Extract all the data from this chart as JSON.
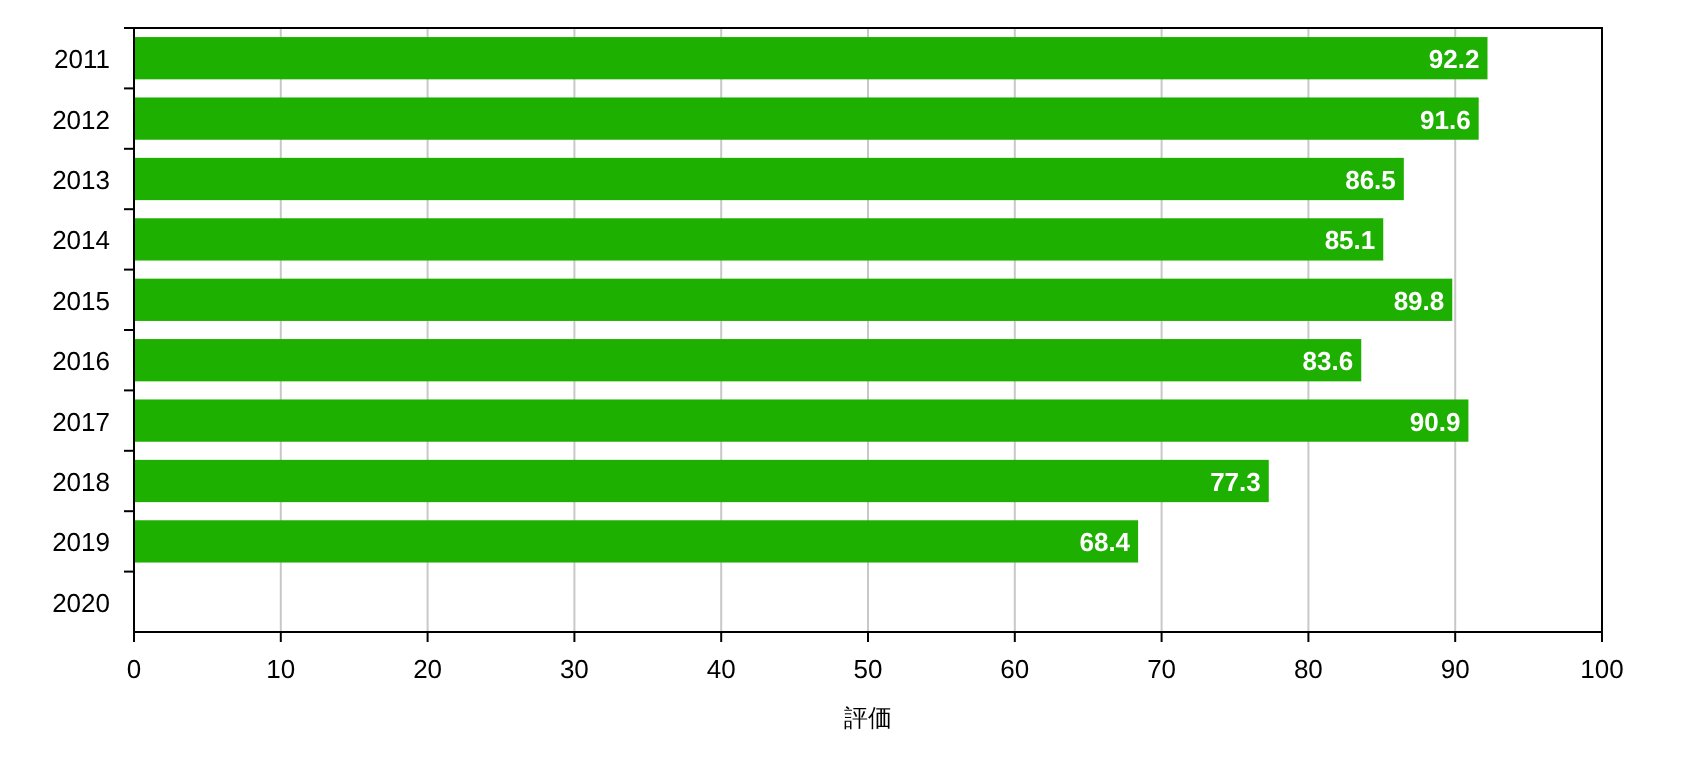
{
  "chart_data": {
    "type": "bar",
    "orientation": "horizontal",
    "xlabel": "評価",
    "categories": [
      "2011",
      "2012",
      "2013",
      "2014",
      "2015",
      "2016",
      "2017",
      "2018",
      "2019",
      "2020"
    ],
    "values": [
      92.2,
      91.6,
      86.5,
      85.1,
      89.8,
      83.6,
      90.9,
      77.3,
      68.4,
      null
    ],
    "color": "#1eb000",
    "xlim": [
      0,
      100
    ],
    "xticks": [
      0,
      10,
      20,
      30,
      40,
      50,
      60,
      70,
      80,
      90,
      100
    ],
    "grid": "x",
    "data_labels": true
  }
}
